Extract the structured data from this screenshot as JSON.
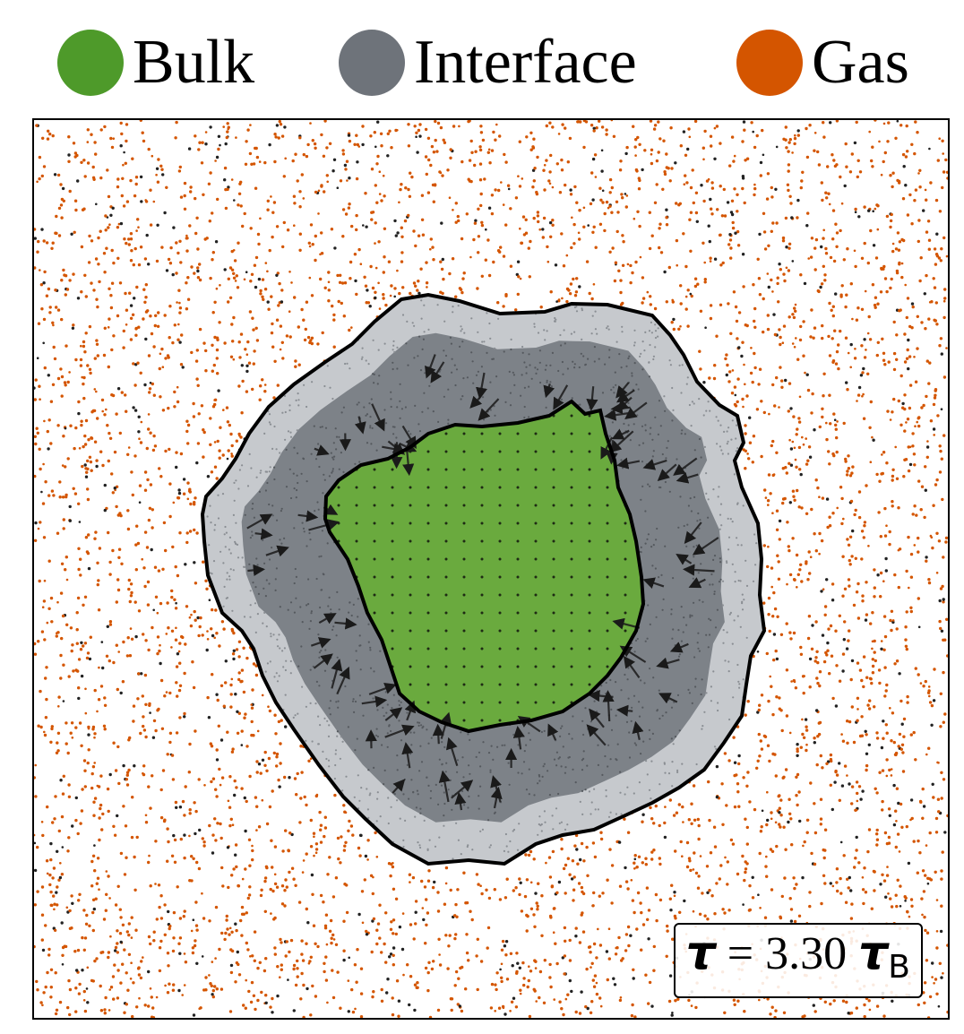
{
  "legend": {
    "items": [
      {
        "label": "Bulk",
        "color": "#4e9a2a"
      },
      {
        "label": "Interface",
        "color": "#6e737a"
      },
      {
        "label": "Gas",
        "color": "#d45500"
      }
    ]
  },
  "annotation": {
    "symbol": "τ",
    "equals": "=",
    "value": "3.30",
    "unit_symbol": "τ",
    "unit_subscript": "B"
  },
  "colors": {
    "bulk_fill": "#6aaa3e",
    "interface_dark": "#7d8288",
    "interface_light": "#c6c9cd",
    "gas_particle": "#d45500",
    "boundary": "#000000",
    "arrow": "#1a1a1a"
  },
  "icons": [
    "bulk-legend-dot",
    "interface-legend-dot",
    "gas-legend-dot"
  ]
}
